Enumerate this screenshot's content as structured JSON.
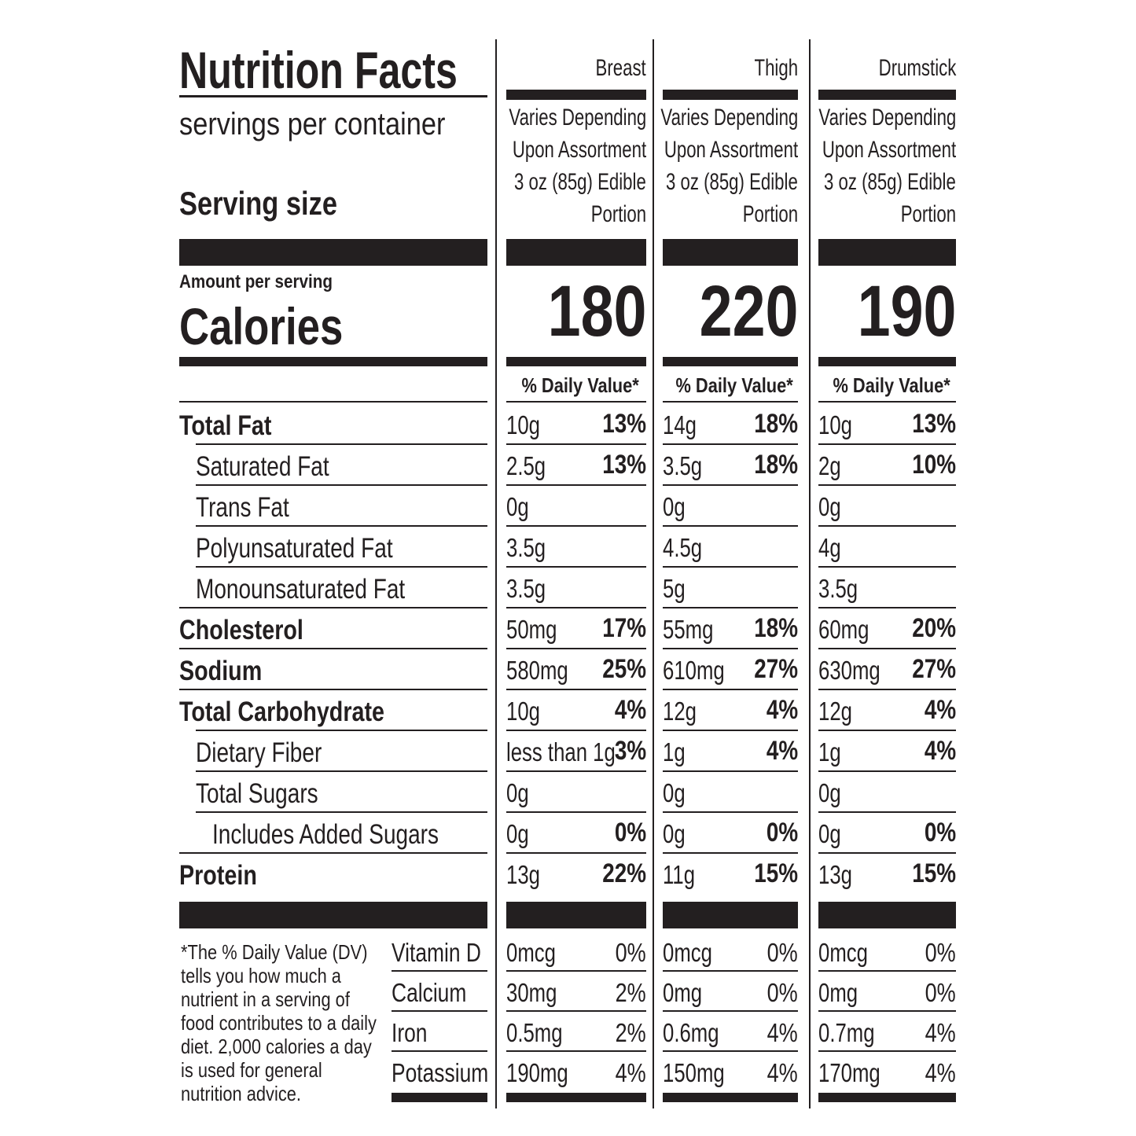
{
  "title": "Nutrition Facts",
  "servings_label": "servings per container",
  "serving_size_label": "Serving size",
  "amount_per_serving": "Amount per serving",
  "calories_label": "Calories",
  "dv_header": "% Daily Value*",
  "columns": [
    {
      "name": "Breast",
      "serving": [
        "Varies Depending",
        "Upon Assortment",
        "3 oz (85g) Edible",
        "Portion"
      ],
      "calories": "180"
    },
    {
      "name": "Thigh",
      "serving": [
        "Varies Depending",
        "Upon Assortment",
        "3 oz (85g) Edible",
        "Portion"
      ],
      "calories": "220"
    },
    {
      "name": "Drumstick",
      "serving": [
        "Varies Depending",
        "Upon Assortment",
        "3 oz (85g) Edible",
        "Portion"
      ],
      "calories": "190"
    }
  ],
  "nutrients": [
    {
      "label": "Total Fat",
      "bold": true,
      "indent": 0,
      "values": [
        [
          "10g",
          "13%"
        ],
        [
          "14g",
          "18%"
        ],
        [
          "10g",
          "13%"
        ]
      ]
    },
    {
      "label": "Saturated Fat",
      "bold": false,
      "indent": 1,
      "values": [
        [
          "2.5g",
          "13%"
        ],
        [
          "3.5g",
          "18%"
        ],
        [
          "2g",
          "10%"
        ]
      ]
    },
    {
      "label": "Trans Fat",
      "bold": false,
      "indent": 1,
      "values": [
        [
          "0g",
          ""
        ],
        [
          "0g",
          ""
        ],
        [
          "0g",
          ""
        ]
      ]
    },
    {
      "label": "Polyunsaturated Fat",
      "bold": false,
      "indent": 1,
      "values": [
        [
          "3.5g",
          ""
        ],
        [
          "4.5g",
          ""
        ],
        [
          "4g",
          ""
        ]
      ]
    },
    {
      "label": "Monounsaturated Fat",
      "bold": false,
      "indent": 1,
      "values": [
        [
          "3.5g",
          ""
        ],
        [
          "5g",
          ""
        ],
        [
          "3.5g",
          ""
        ]
      ]
    },
    {
      "label": "Cholesterol",
      "bold": true,
      "indent": 0,
      "values": [
        [
          "50mg",
          "17%"
        ],
        [
          "55mg",
          "18%"
        ],
        [
          "60mg",
          "20%"
        ]
      ]
    },
    {
      "label": "Sodium",
      "bold": true,
      "indent": 0,
      "values": [
        [
          "580mg",
          "25%"
        ],
        [
          "610mg",
          "27%"
        ],
        [
          "630mg",
          "27%"
        ]
      ]
    },
    {
      "label": "Total Carbohydrate",
      "bold": true,
      "indent": 0,
      "values": [
        [
          "10g",
          "4%"
        ],
        [
          "12g",
          "4%"
        ],
        [
          "12g",
          "4%"
        ]
      ]
    },
    {
      "label": "Dietary Fiber",
      "bold": false,
      "indent": 1,
      "values": [
        [
          "less than 1g",
          "3%"
        ],
        [
          "1g",
          "4%"
        ],
        [
          "1g",
          "4%"
        ]
      ]
    },
    {
      "label": "Total Sugars",
      "bold": false,
      "indent": 1,
      "values": [
        [
          "0g",
          ""
        ],
        [
          "0g",
          ""
        ],
        [
          "0g",
          ""
        ]
      ]
    },
    {
      "label": "Includes Added Sugars",
      "bold": false,
      "indent": 2,
      "values": [
        [
          "0g",
          "0%"
        ],
        [
          "0g",
          "0%"
        ],
        [
          "0g",
          "0%"
        ]
      ]
    },
    {
      "label": "Protein",
      "bold": true,
      "indent": 0,
      "values": [
        [
          "13g",
          "22%"
        ],
        [
          "11g",
          "15%"
        ],
        [
          "13g",
          "15%"
        ]
      ]
    }
  ],
  "vitamins": [
    {
      "label": "Vitamin D",
      "values": [
        [
          "0mcg",
          "0%"
        ],
        [
          "0mcg",
          "0%"
        ],
        [
          "0mcg",
          "0%"
        ]
      ]
    },
    {
      "label": "Calcium",
      "values": [
        [
          "30mg",
          "2%"
        ],
        [
          "0mg",
          "0%"
        ],
        [
          "0mg",
          "0%"
        ]
      ]
    },
    {
      "label": "Iron",
      "values": [
        [
          "0.5mg",
          "2%"
        ],
        [
          "0.6mg",
          "4%"
        ],
        [
          "0.7mg",
          "4%"
        ]
      ]
    },
    {
      "label": "Potassium",
      "values": [
        [
          "190mg",
          "4%"
        ],
        [
          "150mg",
          "4%"
        ],
        [
          "170mg",
          "4%"
        ]
      ]
    }
  ],
  "footnote": [
    "*The % Daily Value (DV)",
    "tells you how much a",
    "nutrient in a serving of",
    "food contributes to a daily",
    "diet. 2,000 calories a day",
    "is used for general",
    "nutrition advice."
  ]
}
